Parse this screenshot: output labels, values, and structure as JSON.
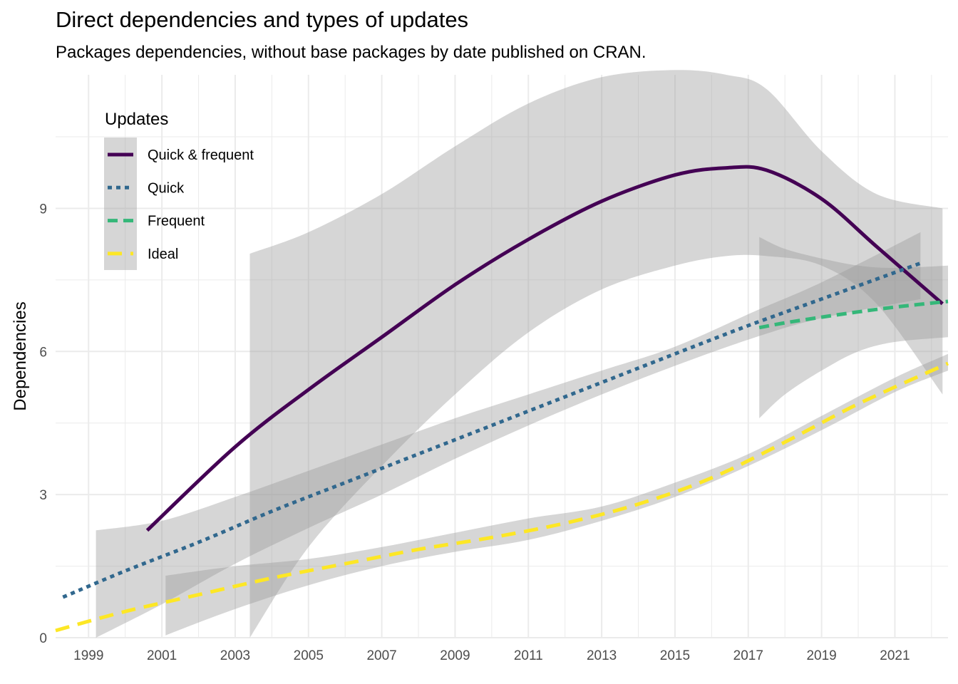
{
  "chart_data": {
    "type": "line",
    "title": "Direct dependencies and types of updates",
    "subtitle": "Packages dependencies, without base packages by date published on CRAN.",
    "xlabel": "",
    "ylabel": "Dependencies",
    "xlim": [
      1998.1,
      2022.45
    ],
    "ylim": [
      0,
      11.8
    ],
    "x_ticks": [
      "1999",
      "2001",
      "2003",
      "2005",
      "2007",
      "2009",
      "2011",
      "2013",
      "2015",
      "2017",
      "2019",
      "2021"
    ],
    "y_ticks": [
      "0",
      "3",
      "6",
      "9"
    ],
    "grid": true,
    "legend": {
      "title": "Updates",
      "position": "top-left"
    },
    "series": [
      {
        "name": "Quick & frequent",
        "color": "#440154",
        "linestyle": "solid",
        "x": [
          2000.6,
          2003,
          2005,
          2007,
          2009,
          2011,
          2013,
          2015,
          2016.4,
          2017.5,
          2019,
          2020.5,
          2022.3
        ],
        "y": [
          2.25,
          4.0,
          5.2,
          6.3,
          7.4,
          8.35,
          9.15,
          9.7,
          9.85,
          9.8,
          9.2,
          8.2,
          7.0
        ],
        "ci_x": [
          2003.4,
          2005,
          2007,
          2009,
          2011,
          2013,
          2015,
          2016.4,
          2017.5,
          2019,
          2020.5,
          2022.3
        ],
        "ci_lower": [
          0.0,
          1.9,
          3.6,
          5.1,
          6.4,
          7.3,
          7.8,
          8.0,
          8.0,
          7.8,
          7.0,
          5.1
        ],
        "ci_upper": [
          8.05,
          8.5,
          9.3,
          10.3,
          11.2,
          11.75,
          11.9,
          11.8,
          11.5,
          10.2,
          9.3,
          9.0
        ]
      },
      {
        "name": "Quick",
        "color": "#31688e",
        "linestyle": "dotted",
        "x": [
          1998.3,
          2000,
          2002,
          2004,
          2006,
          2008,
          2010,
          2012,
          2014,
          2016,
          2017.2,
          2019,
          2021.7
        ],
        "y": [
          0.85,
          1.4,
          2.0,
          2.65,
          3.25,
          3.85,
          4.45,
          5.05,
          5.65,
          6.25,
          6.6,
          7.1,
          7.85
        ],
        "ci_x": [
          1999.2,
          2001,
          2003,
          2005,
          2007,
          2009,
          2011,
          2013,
          2015,
          2017.2,
          2019,
          2021.7
        ],
        "ci_lower": [
          0.0,
          0.7,
          1.55,
          2.3,
          3.0,
          3.75,
          4.45,
          5.1,
          5.7,
          6.3,
          6.7,
          7.1
        ],
        "ci_upper": [
          2.25,
          2.45,
          2.95,
          3.5,
          4.05,
          4.6,
          5.1,
          5.6,
          6.1,
          6.85,
          7.45,
          8.5
        ]
      },
      {
        "name": "Frequent",
        "color": "#35b779",
        "linestyle": "dashed",
        "x": [
          2017.3,
          2018,
          2019,
          2020,
          2021,
          2022.45
        ],
        "y": [
          6.5,
          6.6,
          6.72,
          6.83,
          6.93,
          7.05
        ],
        "ci_x": [
          2017.3,
          2018,
          2019,
          2020,
          2021,
          2022.45
        ],
        "ci_lower": [
          4.6,
          5.1,
          5.6,
          6.0,
          6.2,
          6.3
        ],
        "ci_upper": [
          8.4,
          8.15,
          7.95,
          7.8,
          7.75,
          7.8
        ]
      },
      {
        "name": "Ideal",
        "color": "#fde725",
        "linestyle": "longdash",
        "x": [
          1998.1,
          2000,
          2002,
          2004,
          2006,
          2008,
          2010,
          2012,
          2014,
          2016,
          2018,
          2020,
          2022.45
        ],
        "y": [
          0.15,
          0.55,
          0.9,
          1.25,
          1.55,
          1.85,
          2.1,
          2.4,
          2.8,
          3.35,
          4.1,
          4.9,
          5.75
        ],
        "ci_x": [
          2001.1,
          2003,
          2005,
          2007,
          2009,
          2011,
          2013,
          2015,
          2017,
          2019,
          2021,
          2022.45
        ],
        "ci_lower": [
          0.05,
          0.6,
          1.1,
          1.5,
          1.8,
          2.05,
          2.45,
          2.95,
          3.6,
          4.35,
          5.15,
          5.6
        ],
        "ci_upper": [
          1.3,
          1.5,
          1.65,
          1.9,
          2.2,
          2.5,
          2.75,
          3.25,
          3.85,
          4.65,
          5.45,
          5.95
        ]
      }
    ]
  }
}
